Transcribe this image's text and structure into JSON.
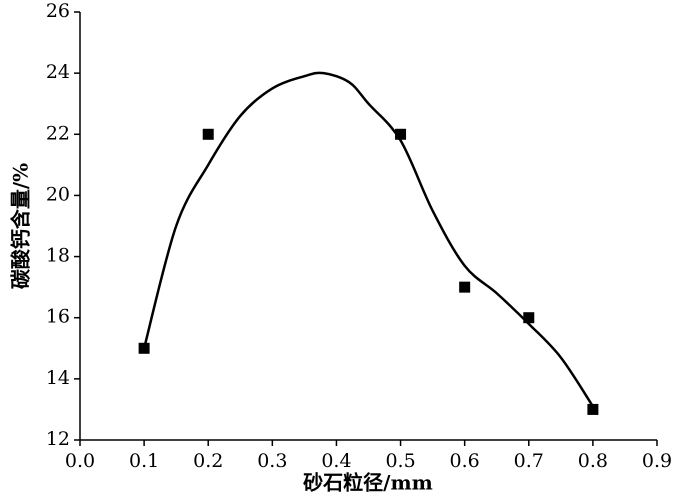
{
  "chart_data": {
    "type": "scatter",
    "xlabel": "砂石粒径/mm",
    "ylabel": "碳酸钙含量/%",
    "xlim": [
      0,
      0.9
    ],
    "xticks": [
      {
        "value": 0,
        "label": "0.0"
      },
      0.1,
      0.2,
      0.3,
      0.4,
      0.5,
      0.6,
      0.7,
      0.8,
      0.9
    ],
    "ylim": [
      12,
      26
    ],
    "yticks": [
      12,
      14,
      16,
      18,
      20,
      22,
      24,
      26
    ],
    "series": [
      {
        "color": "#000000",
        "marker": "square",
        "x": [
          0.1,
          0.2,
          0.5,
          0.6,
          0.7,
          0.8
        ],
        "values": [
          15,
          22,
          22,
          17,
          16,
          13
        ]
      },
      {
        "color": "#000000",
        "style": "line",
        "x": [
          0.1,
          0.15,
          0.2,
          0.25,
          0.3,
          0.35,
          0.38,
          0.42,
          0.45,
          0.5,
          0.55,
          0.6,
          0.65,
          0.7,
          0.75,
          0.8
        ],
        "values": [
          15,
          19,
          21,
          22.6,
          23.5,
          23.9,
          24,
          23.7,
          23,
          21.8,
          19.5,
          17.7,
          16.8,
          15.8,
          14.7,
          13.1
        ]
      }
    ]
  }
}
